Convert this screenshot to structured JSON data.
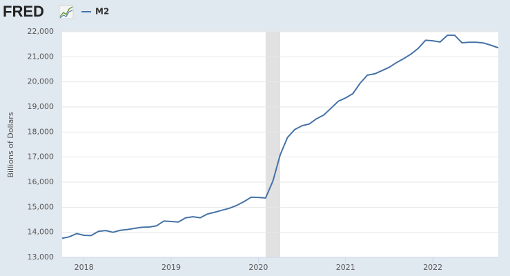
{
  "logo": "FRED",
  "chart_data": {
    "type": "line",
    "y_label": "Billions of Dollars",
    "x": [
      2017.75,
      2017.833,
      2017.917,
      2018,
      2018.083,
      2018.167,
      2018.25,
      2018.333,
      2018.417,
      2018.5,
      2018.583,
      2018.667,
      2018.75,
      2018.833,
      2018.917,
      2019,
      2019.083,
      2019.167,
      2019.25,
      2019.333,
      2019.417,
      2019.5,
      2019.583,
      2019.667,
      2019.75,
      2019.833,
      2019.917,
      2020,
      2020.083,
      2020.167,
      2020.25,
      2020.333,
      2020.417,
      2020.5,
      2020.583,
      2020.667,
      2020.75,
      2020.833,
      2020.917,
      2021,
      2021.083,
      2021.167,
      2021.25,
      2021.333,
      2021.417,
      2021.5,
      2021.583,
      2021.667,
      2021.75,
      2021.833,
      2021.917,
      2022,
      2022.083,
      2022.167,
      2022.25,
      2022.333,
      2022.417,
      2022.5,
      2022.583,
      2022.667,
      2022.75
    ],
    "series": [
      {
        "name": "M2",
        "color": "#4572a7",
        "values": [
          13760,
          13820,
          13950,
          13880,
          13870,
          14040,
          14070,
          14000,
          14080,
          14110,
          14160,
          14200,
          14210,
          14260,
          14450,
          14430,
          14410,
          14580,
          14620,
          14580,
          14730,
          14800,
          14880,
          14960,
          15070,
          15220,
          15400,
          15390,
          15370,
          16050,
          17090,
          17780,
          18100,
          18250,
          18320,
          18530,
          18680,
          18950,
          19230,
          19360,
          19530,
          19950,
          20270,
          20320,
          20450,
          20580,
          20770,
          20930,
          21110,
          21340,
          21660,
          21640,
          21590,
          21860,
          21860,
          21560,
          21580,
          21580,
          21550,
          21460,
          21360
        ]
      }
    ],
    "recession": [
      2020.083,
      2020.25
    ],
    "recession_color": "#e1e1e1",
    "xlim": [
      2017.75,
      2022.75
    ],
    "xticks": [
      2018,
      2019,
      2020,
      2021,
      2022
    ],
    "ylim": [
      13000,
      22000
    ],
    "yticks": [
      {
        "value": 13000,
        "label": "13,000"
      },
      {
        "value": 14000,
        "label": "14,000"
      },
      {
        "value": 15000,
        "label": "15,000"
      },
      {
        "value": 16000,
        "label": "16,000"
      },
      {
        "value": 17000,
        "label": "17,000"
      },
      {
        "value": 18000,
        "label": "18,000"
      },
      {
        "value": 19000,
        "label": "19,000"
      },
      {
        "value": 20000,
        "label": "20,000"
      },
      {
        "value": 21000,
        "label": "21,000"
      },
      {
        "value": 22000,
        "label": "22,000"
      }
    ],
    "grid": true
  }
}
